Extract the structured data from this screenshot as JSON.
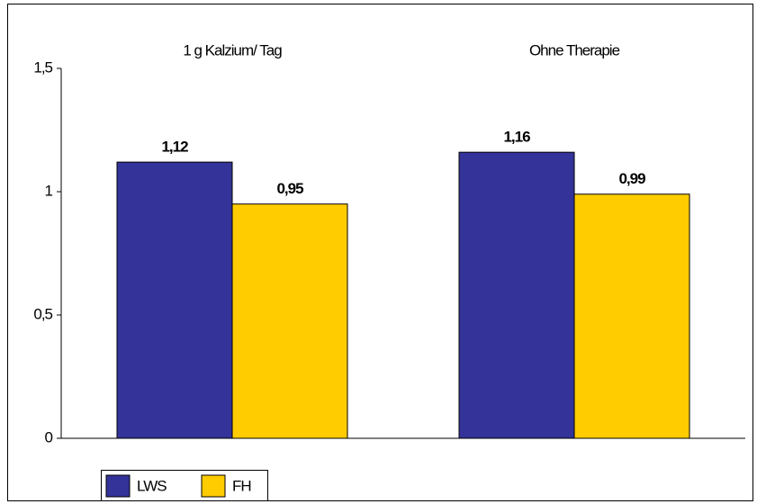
{
  "chart_data": {
    "type": "bar",
    "categories": [
      "1 g Kalzium/ Tag",
      "Ohne Therapie"
    ],
    "series": [
      {
        "name": "LWS",
        "color": "#333399",
        "values": [
          1.12,
          1.16
        ],
        "value_labels": [
          "1,12",
          "1,16"
        ]
      },
      {
        "name": "FH",
        "color": "#ffcc00",
        "values": [
          0.95,
          0.99
        ],
        "value_labels": [
          "0,95",
          "0,99"
        ]
      }
    ],
    "ylim": [
      0,
      1.5
    ],
    "yticks": [
      0,
      {
        "value": 0.5,
        "label": "0,5"
      },
      1,
      {
        "value": 1.5,
        "label": "1,5"
      }
    ],
    "grid": false,
    "legend": "bottom-left"
  }
}
